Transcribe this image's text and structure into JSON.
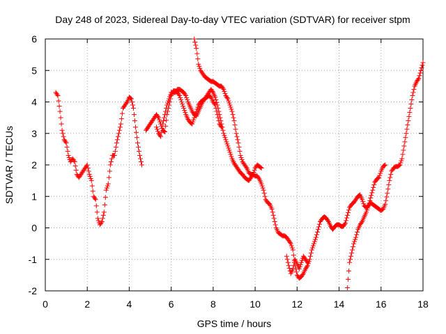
{
  "chart_data": {
    "type": "scatter",
    "title": "Day 248 of 2023, Sidereal Day-to-day VTEC variation (SDTVAR) for receiver stpm",
    "xlabel": "GPS time / hours",
    "ylabel": "SDTVAR / TECUs",
    "xlim": [
      0,
      18
    ],
    "ylim": [
      -2,
      6
    ],
    "xticks": [
      "0",
      "2",
      "4",
      "6",
      "8",
      "10",
      "12",
      "14",
      "16",
      "18"
    ],
    "yticks": [
      "-2",
      "-1",
      "0",
      "1",
      "2",
      "3",
      "4",
      "5",
      "6"
    ],
    "grid": true,
    "marker": "+",
    "color": "#ff0000",
    "series": [
      {
        "name": "SDTVAR",
        "segments": [
          [
            [
              0.5,
              4.3
            ],
            [
              0.6,
              4.2
            ],
            [
              0.7,
              3.7
            ],
            [
              0.8,
              3.1
            ],
            [
              0.9,
              2.8
            ],
            [
              1.0,
              2.7
            ],
            [
              1.1,
              2.3
            ],
            [
              1.2,
              2.1
            ],
            [
              1.3,
              2.2
            ],
            [
              1.4,
              2.1
            ],
            [
              1.5,
              1.7
            ],
            [
              1.6,
              1.6
            ],
            [
              1.7,
              1.7
            ],
            [
              1.8,
              1.8
            ],
            [
              1.9,
              1.9
            ],
            [
              2.0,
              2.0
            ],
            [
              2.1,
              1.7
            ],
            [
              2.2,
              1.5
            ],
            [
              2.3,
              1.0
            ],
            [
              2.4,
              0.9
            ],
            [
              2.5,
              0.3
            ],
            [
              2.6,
              0.1
            ],
            [
              2.7,
              0.2
            ],
            [
              2.8,
              0.5
            ],
            [
              2.9,
              1.2
            ],
            [
              3.0,
              1.4
            ],
            [
              3.1,
              2.0
            ],
            [
              3.2,
              2.3
            ],
            [
              3.3,
              2.3
            ],
            [
              3.4,
              2.7
            ],
            [
              3.5,
              3.0
            ],
            [
              3.6,
              3.3
            ],
            [
              3.7,
              3.8
            ],
            [
              3.8,
              3.9
            ],
            [
              3.9,
              4.0
            ],
            [
              4.0,
              4.15
            ],
            [
              4.1,
              4.1
            ],
            [
              4.2,
              3.8
            ],
            [
              4.3,
              3.2
            ],
            [
              4.4,
              2.7
            ],
            [
              4.5,
              2.3
            ],
            [
              4.6,
              2.0
            ]
          ],
          [
            [
              4.8,
              3.1
            ],
            [
              4.9,
              3.2
            ],
            [
              5.0,
              3.3
            ],
            [
              5.1,
              3.4
            ],
            [
              5.2,
              3.5
            ],
            [
              5.3,
              3.6
            ],
            [
              5.4,
              3.5
            ],
            [
              5.5,
              3.3
            ],
            [
              5.6,
              3.1
            ],
            [
              5.7,
              3.05
            ],
            [
              5.8,
              3.6
            ],
            [
              5.9,
              3.9
            ],
            [
              6.0,
              4.2
            ],
            [
              6.1,
              4.35
            ],
            [
              6.2,
              4.35
            ],
            [
              6.3,
              4.3
            ],
            [
              6.4,
              4.2
            ],
            [
              6.5,
              4.0
            ],
            [
              6.6,
              3.8
            ],
            [
              6.7,
              3.6
            ],
            [
              6.8,
              3.45
            ],
            [
              6.9,
              3.35
            ],
            [
              7.0,
              3.3
            ],
            [
              7.1,
              3.5
            ],
            [
              7.2,
              3.7
            ],
            [
              7.3,
              3.9
            ],
            [
              7.4,
              4.0
            ],
            [
              7.5,
              4.05
            ],
            [
              7.6,
              4.1
            ],
            [
              7.7,
              4.15
            ],
            [
              7.8,
              4.2
            ],
            [
              7.9,
              4.15
            ],
            [
              8.0,
              4.0
            ],
            [
              8.1,
              3.9
            ],
            [
              8.2,
              3.6
            ],
            [
              8.3,
              3.3
            ],
            [
              8.4,
              3.2
            ]
          ],
          [
            [
              5.3,
              3.2
            ],
            [
              5.4,
              3.0
            ],
            [
              5.5,
              2.9
            ],
            [
              5.6,
              3.3
            ],
            [
              5.7,
              3.6
            ],
            [
              5.8,
              3.9
            ],
            [
              5.9,
              4.1
            ],
            [
              6.0,
              4.3
            ],
            [
              6.1,
              4.3
            ],
            [
              6.2,
              4.3
            ],
            [
              6.3,
              4.4
            ],
            [
              6.4,
              4.4
            ],
            [
              6.5,
              4.35
            ],
            [
              6.6,
              4.3
            ],
            [
              6.7,
              4.2
            ],
            [
              6.8,
              4.0
            ],
            [
              6.9,
              3.85
            ],
            [
              7.0,
              3.7
            ],
            [
              7.1,
              3.6
            ],
            [
              7.2,
              3.55
            ],
            [
              7.3,
              3.7
            ],
            [
              7.4,
              3.85
            ],
            [
              7.5,
              4.0
            ],
            [
              7.6,
              4.1
            ],
            [
              7.7,
              4.2
            ],
            [
              7.8,
              4.3
            ],
            [
              7.9,
              4.4
            ],
            [
              8.0,
              4.3
            ],
            [
              8.1,
              4.15
            ],
            [
              8.2,
              3.9
            ],
            [
              8.3,
              3.6
            ],
            [
              8.4,
              3.3
            ],
            [
              8.5,
              3.0
            ],
            [
              8.6,
              2.8
            ],
            [
              8.7,
              2.6
            ],
            [
              8.8,
              2.4
            ],
            [
              8.9,
              2.2
            ],
            [
              9.0,
              2.05
            ],
            [
              9.1,
              1.95
            ],
            [
              9.2,
              1.85
            ],
            [
              9.3,
              1.75
            ],
            [
              9.4,
              1.7
            ],
            [
              9.5,
              1.6
            ],
            [
              9.6,
              1.55
            ],
            [
              9.7,
              1.5
            ],
            [
              9.8,
              1.6
            ],
            [
              9.9,
              1.7
            ],
            [
              10.0,
              1.9
            ],
            [
              10.1,
              2.0
            ],
            [
              10.2,
              1.95
            ],
            [
              10.3,
              1.9
            ]
          ],
          [
            [
              7.1,
              6.0
            ],
            [
              7.2,
              5.7
            ],
            [
              7.3,
              5.2
            ],
            [
              7.4,
              5.0
            ],
            [
              7.5,
              4.9
            ],
            [
              7.6,
              4.8
            ],
            [
              7.7,
              4.75
            ],
            [
              7.8,
              4.7
            ],
            [
              7.9,
              4.65
            ],
            [
              8.0,
              4.65
            ],
            [
              8.1,
              4.6
            ],
            [
              8.2,
              4.55
            ],
            [
              8.3,
              4.5
            ],
            [
              8.4,
              4.5
            ],
            [
              8.5,
              4.4
            ],
            [
              8.6,
              4.2
            ],
            [
              8.7,
              4.1
            ],
            [
              8.8,
              3.9
            ],
            [
              8.9,
              3.7
            ],
            [
              9.0,
              3.4
            ],
            [
              9.1,
              3.0
            ],
            [
              9.2,
              2.7
            ],
            [
              9.3,
              2.3
            ],
            [
              9.4,
              2.1
            ],
            [
              9.5,
              2.0
            ],
            [
              9.6,
              1.9
            ],
            [
              9.7,
              1.75
            ],
            [
              9.8,
              1.7
            ],
            [
              9.9,
              1.7
            ],
            [
              10.0,
              1.65
            ],
            [
              10.1,
              1.65
            ],
            [
              10.2,
              1.55
            ],
            [
              10.3,
              1.4
            ],
            [
              10.4,
              1.2
            ],
            [
              10.5,
              0.9
            ],
            [
              10.6,
              0.8
            ],
            [
              10.7,
              0.75
            ],
            [
              10.8,
              0.6
            ],
            [
              10.9,
              0.3
            ],
            [
              11.0,
              0.0
            ],
            [
              11.1,
              -0.15
            ],
            [
              11.2,
              -0.2
            ],
            [
              11.3,
              -0.25
            ],
            [
              11.4,
              -0.25
            ],
            [
              11.5,
              -0.3
            ],
            [
              11.6,
              -0.4
            ],
            [
              11.7,
              -0.5
            ],
            [
              11.8,
              -0.7
            ],
            [
              11.9,
              -1.2
            ],
            [
              12.0,
              -1.5
            ],
            [
              12.1,
              -1.6
            ],
            [
              12.2,
              -1.55
            ],
            [
              12.3,
              -1.45
            ],
            [
              12.4,
              -1.3
            ],
            [
              12.5,
              -1.2
            ],
            [
              12.6,
              -1.0
            ],
            [
              12.7,
              -0.7
            ],
            [
              12.8,
              -0.5
            ],
            [
              12.9,
              -0.3
            ],
            [
              13.0,
              -0.05
            ],
            [
              13.1,
              0.2
            ],
            [
              13.2,
              0.3
            ],
            [
              13.3,
              0.35
            ],
            [
              13.4,
              0.3
            ],
            [
              13.5,
              0.2
            ],
            [
              13.6,
              0.05
            ],
            [
              13.7,
              -0.05
            ],
            [
              13.8,
              0.05
            ],
            [
              13.9,
              0.1
            ],
            [
              14.0,
              0.1
            ],
            [
              14.1,
              0.05
            ],
            [
              14.2,
              0.05
            ],
            [
              14.3,
              0.15
            ],
            [
              14.4,
              0.4
            ],
            [
              14.5,
              0.65
            ],
            [
              14.6,
              0.75
            ],
            [
              14.7,
              0.8
            ],
            [
              14.8,
              0.9
            ],
            [
              14.9,
              1.0
            ],
            [
              15.0,
              1.05
            ],
            [
              15.1,
              0.9
            ],
            [
              15.2,
              0.7
            ],
            [
              15.3,
              0.65
            ],
            [
              15.4,
              0.7
            ],
            [
              15.5,
              0.8
            ],
            [
              15.6,
              0.75
            ],
            [
              15.7,
              0.7
            ],
            [
              15.8,
              0.65
            ],
            [
              15.9,
              0.6
            ],
            [
              16.0,
              0.55
            ],
            [
              16.1,
              0.6
            ],
            [
              16.2,
              0.75
            ],
            [
              16.3,
              1.1
            ],
            [
              16.4,
              1.5
            ],
            [
              16.5,
              1.8
            ],
            [
              16.6,
              1.9
            ],
            [
              16.7,
              1.95
            ],
            [
              16.8,
              1.95
            ],
            [
              16.9,
              2.0
            ],
            [
              17.0,
              2.2
            ],
            [
              17.1,
              2.6
            ],
            [
              17.2,
              3.0
            ],
            [
              17.3,
              3.4
            ],
            [
              17.4,
              3.8
            ],
            [
              17.5,
              4.2
            ],
            [
              17.6,
              4.5
            ],
            [
              17.7,
              4.65
            ],
            [
              17.8,
              4.75
            ],
            [
              17.9,
              5.0
            ],
            [
              18.0,
              5.25
            ]
          ],
          [
            [
              11.5,
              -0.9
            ],
            [
              11.6,
              -1.2
            ],
            [
              11.7,
              -1.45
            ],
            [
              11.8,
              -1.3
            ],
            [
              11.9,
              -1.0
            ],
            [
              12.0,
              -1.15
            ],
            [
              12.1,
              -1.3
            ],
            [
              12.2,
              -1.1
            ],
            [
              12.3,
              -0.9
            ],
            [
              12.4,
              -1.0
            ],
            [
              12.5,
              -1.1
            ]
          ],
          [
            [
              14.4,
              -1.9
            ],
            [
              14.5,
              -1.1
            ],
            [
              14.6,
              -0.8
            ],
            [
              14.7,
              -0.5
            ],
            [
              14.8,
              -0.3
            ],
            [
              14.9,
              -0.05
            ],
            [
              15.0,
              0.1
            ],
            [
              15.1,
              0.2
            ],
            [
              15.2,
              0.35
            ],
            [
              15.3,
              0.5
            ],
            [
              15.4,
              0.7
            ],
            [
              15.5,
              0.95
            ],
            [
              15.6,
              1.2
            ],
            [
              15.7,
              1.45
            ],
            [
              15.8,
              1.55
            ],
            [
              15.9,
              1.6
            ],
            [
              16.0,
              1.8
            ],
            [
              16.1,
              1.95
            ],
            [
              16.2,
              2.0
            ]
          ]
        ]
      }
    ]
  }
}
